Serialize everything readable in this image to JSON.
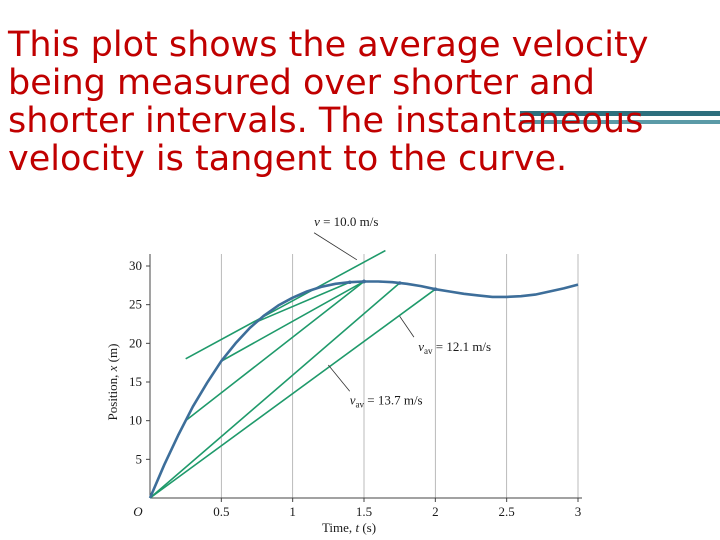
{
  "slide": {
    "text": "This plot shows the average velocity being measured over shorter and shorter intervals. The instantaneous velocity is tangent to the curve."
  },
  "colors": {
    "text": "#c00000",
    "curve": "#3d6e9a",
    "lines": "#1f9a6b",
    "grid": "#aaaaaa",
    "accent_bar_dark": "#2e6f7d",
    "accent_bar_light": "#5b9aa7"
  },
  "chart_data": {
    "type": "line",
    "xlabel_prefix": "Time, ",
    "xlabel_var": "t",
    "xlabel_suffix": " (s)",
    "ylabel_prefix": "Position, ",
    "ylabel_var": "x",
    "ylabel_suffix": " (m)",
    "origin_label": "O",
    "xlim": [
      0,
      3
    ],
    "ylim": [
      0,
      30
    ],
    "x_ticks": [
      "0.5",
      "1",
      "1.5",
      "2",
      "2.5",
      "3"
    ],
    "x_tick_values": [
      0.5,
      1,
      1.5,
      2,
      2.5,
      3
    ],
    "y_ticks": [
      "5",
      "10",
      "15",
      "20",
      "25",
      "30"
    ],
    "y_tick_values": [
      5,
      10,
      15,
      20,
      25,
      30
    ],
    "grid": "vertical",
    "series": [
      {
        "kind": "curve",
        "x": [
          0,
          0.1,
          0.2,
          0.3,
          0.4,
          0.5,
          0.6,
          0.7,
          0.8,
          0.9,
          1.0,
          1.1,
          1.2,
          1.3,
          1.4,
          1.5,
          1.6,
          1.7,
          1.8,
          1.9,
          2.0,
          2.1,
          2.2,
          2.3,
          2.4,
          2.5,
          2.6,
          2.7,
          2.8,
          2.9,
          3.0
        ],
        "y": [
          0,
          4.3,
          8.2,
          11.8,
          14.9,
          17.7,
          20.0,
          22.0,
          23.6,
          24.9,
          25.9,
          26.7,
          27.3,
          27.7,
          27.9,
          28.0,
          28.0,
          27.9,
          27.7,
          27.4,
          27.0,
          26.7,
          26.4,
          26.2,
          26.0,
          26.0,
          26.1,
          26.3,
          26.7,
          27.1,
          27.6
        ]
      }
    ],
    "secants": [
      {
        "x": [
          0,
          2.0
        ],
        "y": [
          0,
          27.0
        ]
      },
      {
        "x": [
          0,
          1.75
        ],
        "y": [
          0,
          27.8
        ]
      },
      {
        "x": [
          0.25,
          1.5
        ],
        "y": [
          10.0,
          28.0
        ]
      },
      {
        "x": [
          0.5,
          1.5
        ],
        "y": [
          17.7,
          28.0
        ]
      },
      {
        "x": [
          0.75,
          1.4
        ],
        "y": [
          22.8,
          27.9
        ]
      }
    ],
    "tangent": {
      "x": [
        0.25,
        1.65
      ],
      "y": [
        18.0,
        32.0
      ]
    },
    "annotations": [
      {
        "name": "annotation-v-tangent",
        "sym": "v",
        "sub": "",
        "rest": " = 10.0 m/s",
        "text_at": [
          1.15,
          35.2
        ],
        "line_from": [
          1.15,
          34.3
        ],
        "line_to": [
          1.45,
          30.8
        ]
      },
      {
        "name": "annotation-vav-12",
        "sym": "v",
        "sub": "av",
        "rest": " = 12.1 m/s",
        "text_at": [
          1.88,
          19.0
        ],
        "line_from": [
          1.85,
          20.8
        ],
        "line_to": [
          1.75,
          23.5
        ]
      },
      {
        "name": "annotation-vav-13",
        "sym": "v",
        "sub": "av",
        "rest": " = 13.7 m/s",
        "text_at": [
          1.4,
          12.1
        ],
        "line_from": [
          1.4,
          13.8
        ],
        "line_to": [
          1.25,
          17.2
        ]
      }
    ]
  }
}
